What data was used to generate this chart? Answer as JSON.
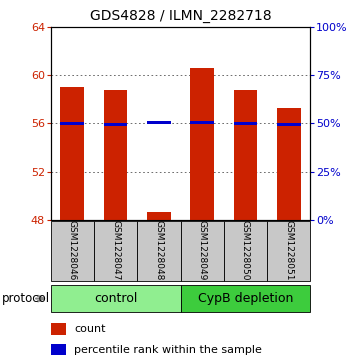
{
  "title": "GDS4828 / ILMN_2282718",
  "samples": [
    "GSM1228046",
    "GSM1228047",
    "GSM1228048",
    "GSM1228049",
    "GSM1228050",
    "GSM1228051"
  ],
  "count_values": [
    59.0,
    58.8,
    48.6,
    60.6,
    58.8,
    57.3
  ],
  "percentile_values": [
    50.2,
    49.5,
    50.5,
    50.5,
    49.8,
    49.5
  ],
  "bar_base": 48,
  "ylim_left": [
    48,
    64
  ],
  "ylim_right": [
    0,
    100
  ],
  "yticks_left": [
    48,
    52,
    56,
    60,
    64
  ],
  "yticks_right": [
    0,
    25,
    50,
    75,
    100
  ],
  "right_tick_labels": [
    "0%",
    "25%",
    "50%",
    "75%",
    "100%"
  ],
  "count_color": "#cc2200",
  "percentile_color": "#0000cc",
  "control_color": "#90ee90",
  "depletion_color": "#3dcc3d",
  "sample_bg_color": "#c8c8c8",
  "group_label_control": "control",
  "group_label_depletion": "CypB depletion",
  "legend_count": "count",
  "legend_pct": "percentile rank within the sample",
  "protocol_label": "protocol",
  "bar_width": 0.55,
  "grid_color": "#555555",
  "title_fontsize": 10,
  "tick_label_fontsize": 8,
  "sample_fontsize": 6.5,
  "group_fontsize": 9,
  "legend_fontsize": 8
}
